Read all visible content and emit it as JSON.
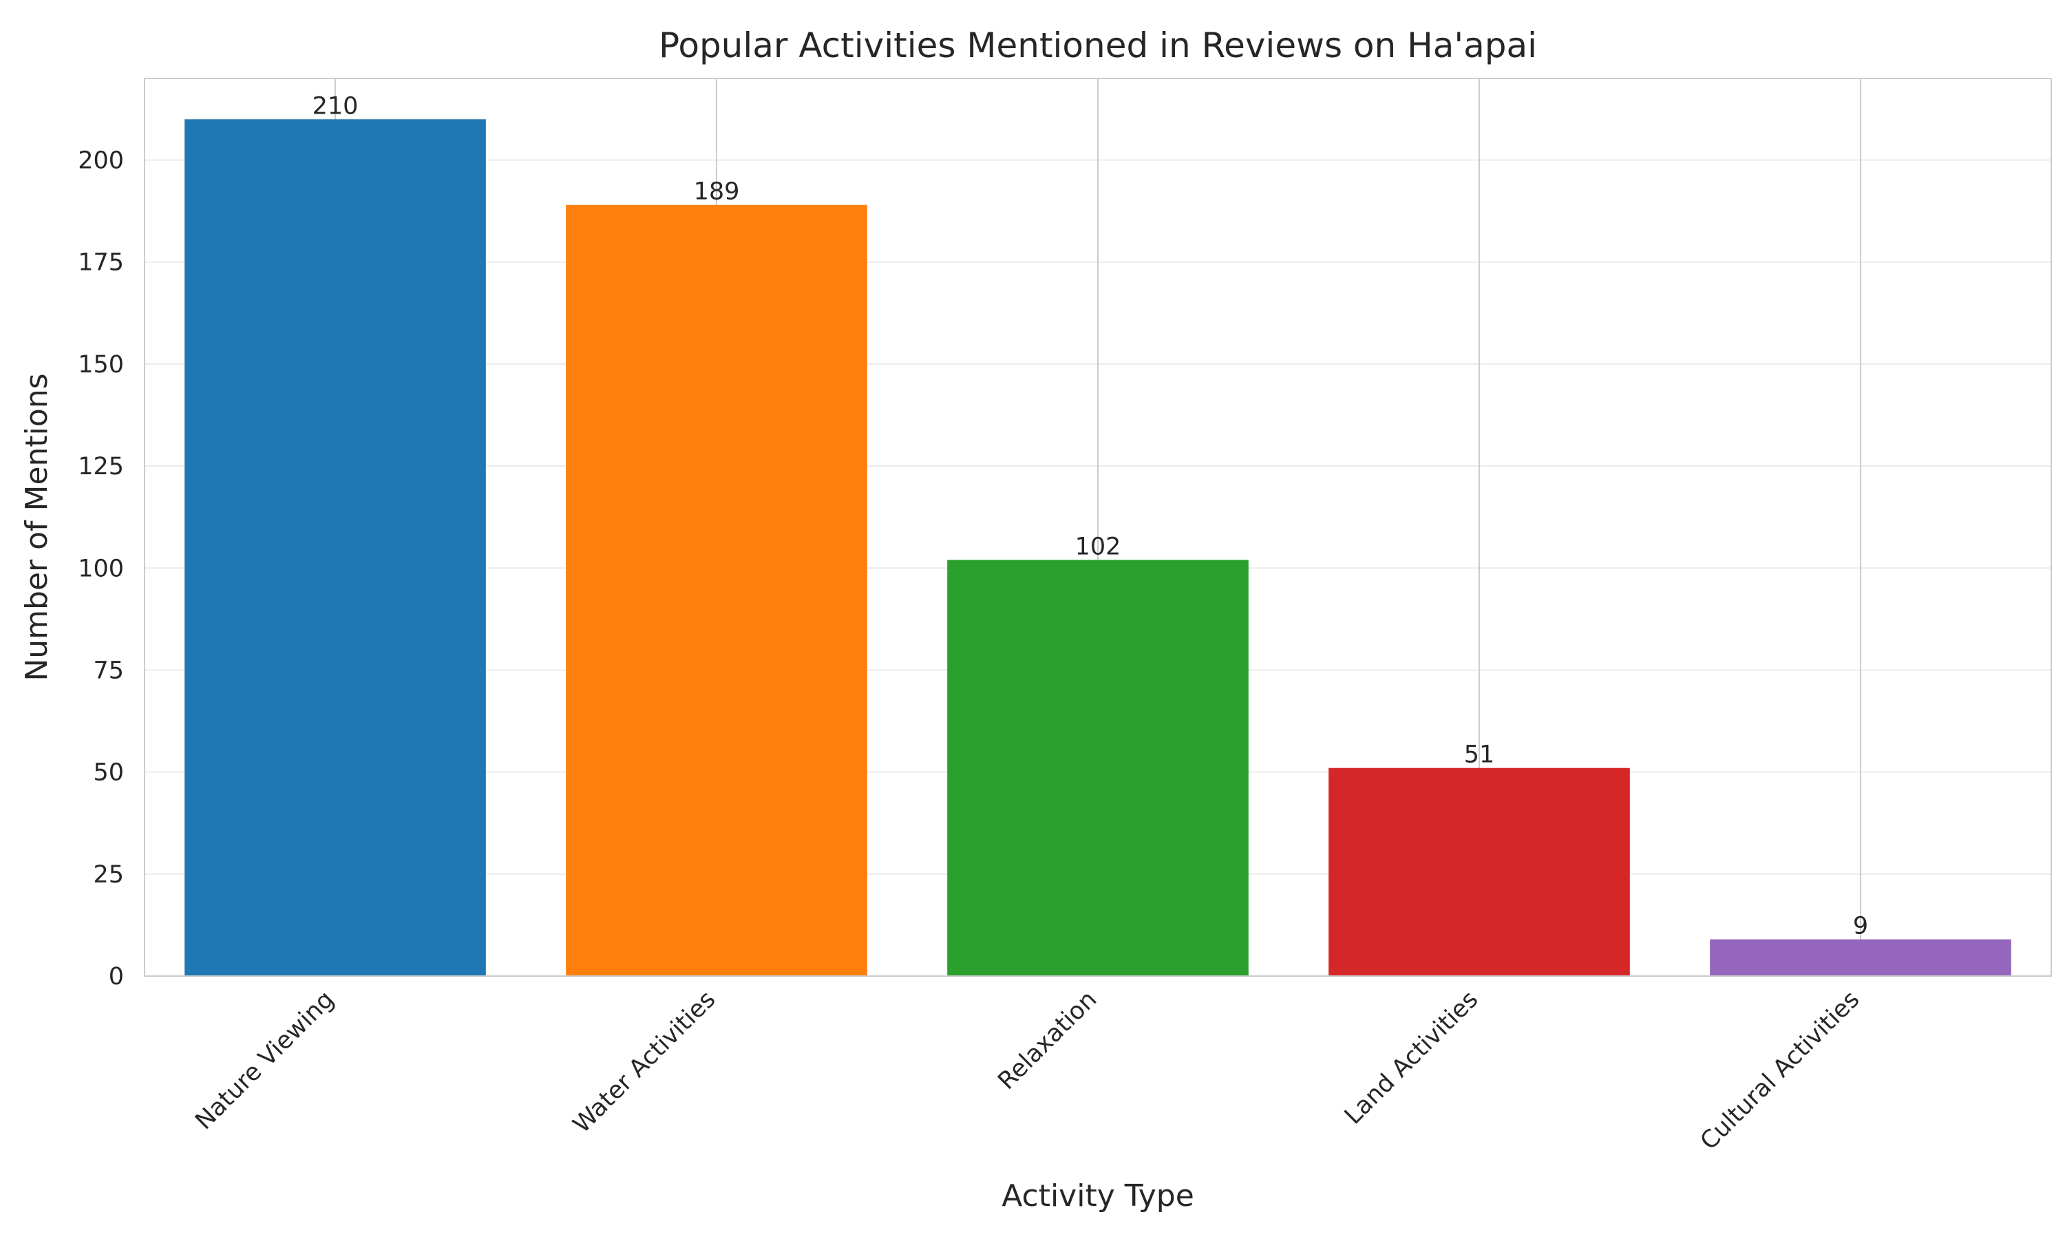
{
  "chart_data": {
    "type": "bar",
    "title": "Popular Activities Mentioned in Reviews on Ha'apai",
    "xlabel": "Activity Type",
    "ylabel": "Number of Mentions",
    "categories": [
      "Nature Viewing",
      "Water Activities",
      "Relaxation",
      "Land Activities",
      "Cultural Activities"
    ],
    "values": [
      210,
      189,
      102,
      51,
      9
    ],
    "colors": [
      "#1f77b4",
      "#ff7f0e",
      "#2ca02c",
      "#d62728",
      "#9467bd"
    ],
    "ylim": [
      0,
      220
    ],
    "yticks": [
      0,
      25,
      50,
      75,
      100,
      125,
      150,
      175,
      200
    ],
    "grid": true,
    "legend": "none",
    "data_labels": true
  }
}
